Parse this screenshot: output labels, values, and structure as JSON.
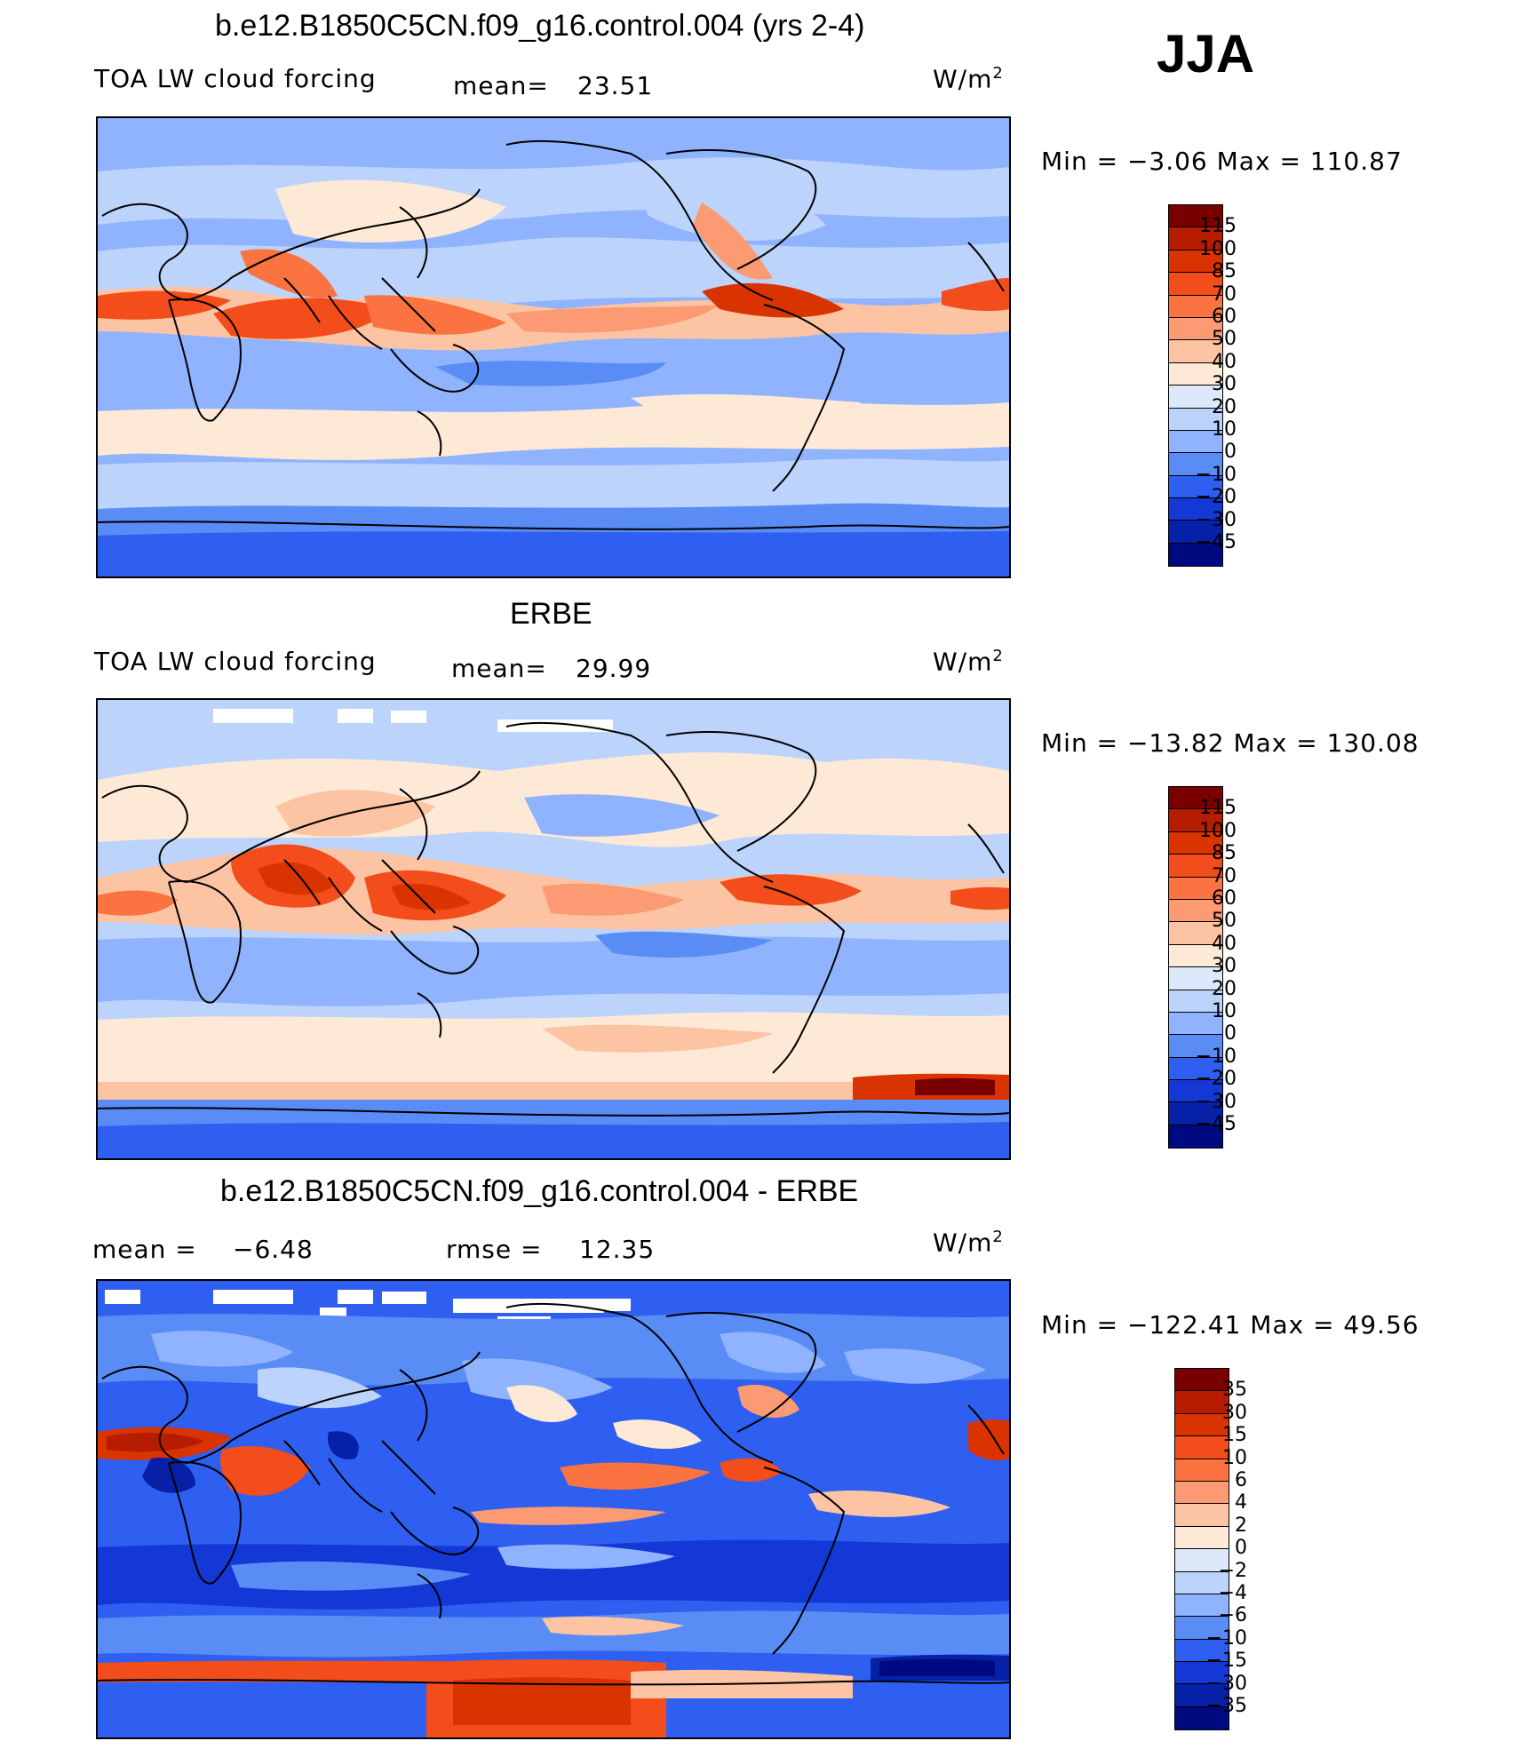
{
  "season": "JJA",
  "panels": [
    {
      "title": "b.e12.B1850C5CN.f09_g16.control.004 (yrs 2-4)",
      "left_label": "TOA LW cloud forcing",
      "stat1_label": "mean=",
      "stat1_value": "23.51",
      "stat2_label": "",
      "stat2_value": "",
      "unit": "W/m",
      "unit_sup": "2",
      "minmax": "Min  =   −3.06  Max  =  110.87"
    },
    {
      "title": "ERBE",
      "left_label": "TOA LW cloud forcing",
      "stat1_label": "mean=",
      "stat1_value": "29.99",
      "stat2_label": "",
      "stat2_value": "",
      "unit": "W/m",
      "unit_sup": "2",
      "minmax": "Min  = −13.82  Max  =  130.08"
    },
    {
      "title": "b.e12.B1850C5CN.f09_g16.control.004 - ERBE",
      "left_label": "mean  =",
      "stat1_label": "",
      "stat1_value": "−6.48",
      "stat2_label": "rmse  =",
      "stat2_value": "12.35",
      "unit": "W/m",
      "unit_sup": "2",
      "minmax": "Min  = −122.41  Max  =    49.56"
    }
  ],
  "colorbars": {
    "field": {
      "labels": [
        "115",
        "100",
        "85",
        "70",
        "60",
        "50",
        "40",
        "30",
        "20",
        "10",
        "0",
        "−10",
        "−20",
        "−30",
        "−45"
      ],
      "colors": [
        "#7a0000",
        "#b51c00",
        "#d93300",
        "#f24d1a",
        "#fa7340",
        "#fb9a73",
        "#fcc4a3",
        "#fee9d6",
        "#dde9fb",
        "#bcd3fb",
        "#8fb3ff",
        "#5a8cf5",
        "#2f5ff0",
        "#1338d6",
        "#0620a8",
        "#000a80"
      ]
    },
    "diff": {
      "labels": [
        "35",
        "30",
        "15",
        "10",
        "6",
        "4",
        "2",
        "0",
        "−2",
        "−4",
        "−6",
        "−10",
        "−15",
        "−30",
        "−35"
      ],
      "colors": [
        "#7a0000",
        "#b51c00",
        "#d93300",
        "#f24d1a",
        "#fa7340",
        "#fb9a73",
        "#fcc4a3",
        "#fee9d6",
        "#dde9fb",
        "#bcd3fb",
        "#8fb3ff",
        "#5a8cf5",
        "#2f5ff0",
        "#1338d6",
        "#0620a8",
        "#000a80"
      ]
    }
  }
}
